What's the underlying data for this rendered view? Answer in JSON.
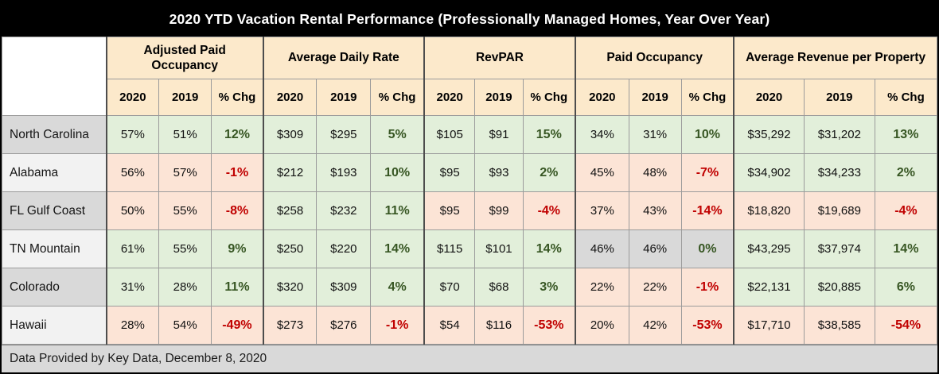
{
  "header": {
    "title": "2020 YTD Vacation Rental Performance (Professionally Managed Homes, Year Over Year)"
  },
  "footer": {
    "text": "Data Provided by Key Data, December 8, 2020"
  },
  "colors": {
    "title_bar_bg": "#000000",
    "title_bar_text": "#FFFFFF",
    "header_bg": "#FCE9CB",
    "positive_bg": "#E2EFDA",
    "negative_bg": "#FCE4D6",
    "neutral_bg": "#D9D9D9",
    "positive_text": "#375623",
    "negative_text": "#C00000",
    "row_label_bg_a": "#D9D9D9",
    "row_label_bg_b": "#F2F2F2",
    "footer_bg": "#D9D9D9"
  },
  "chart_data": {
    "type": "table",
    "title": "2020 YTD Vacation Rental Performance (Professionally Managed Homes, Year Over Year)",
    "column_groups": [
      "Adjusted Paid Occupancy",
      "Average Daily Rate",
      "RevPAR",
      "Paid Occupancy",
      "Average Revenue per Property"
    ],
    "sub_columns": [
      "2020",
      "2019",
      "% Chg"
    ],
    "rows": [
      {
        "label": "North Carolina",
        "metrics": [
          {
            "y2020": "57%",
            "y2019": "51%",
            "chg": "12%",
            "trend": "up"
          },
          {
            "y2020": "$309",
            "y2019": "$295",
            "chg": "5%",
            "trend": "up"
          },
          {
            "y2020": "$105",
            "y2019": "$91",
            "chg": "15%",
            "trend": "up"
          },
          {
            "y2020": "34%",
            "y2019": "31%",
            "chg": "10%",
            "trend": "up"
          },
          {
            "y2020": "$35,292",
            "y2019": "$31,202",
            "chg": "13%",
            "trend": "up"
          }
        ]
      },
      {
        "label": "Alabama",
        "metrics": [
          {
            "y2020": "56%",
            "y2019": "57%",
            "chg": "-1%",
            "trend": "down"
          },
          {
            "y2020": "$212",
            "y2019": "$193",
            "chg": "10%",
            "trend": "up"
          },
          {
            "y2020": "$95",
            "y2019": "$93",
            "chg": "2%",
            "trend": "up"
          },
          {
            "y2020": "45%",
            "y2019": "48%",
            "chg": "-7%",
            "trend": "down"
          },
          {
            "y2020": "$34,902",
            "y2019": "$34,233",
            "chg": "2%",
            "trend": "up"
          }
        ]
      },
      {
        "label": "FL Gulf Coast",
        "metrics": [
          {
            "y2020": "50%",
            "y2019": "55%",
            "chg": "-8%",
            "trend": "down"
          },
          {
            "y2020": "$258",
            "y2019": "$232",
            "chg": "11%",
            "trend": "up"
          },
          {
            "y2020": "$95",
            "y2019": "$99",
            "chg": "-4%",
            "trend": "down"
          },
          {
            "y2020": "37%",
            "y2019": "43%",
            "chg": "-14%",
            "trend": "down"
          },
          {
            "y2020": "$18,820",
            "y2019": "$19,689",
            "chg": "-4%",
            "trend": "down"
          }
        ]
      },
      {
        "label": "TN Mountain",
        "metrics": [
          {
            "y2020": "61%",
            "y2019": "55%",
            "chg": "9%",
            "trend": "up"
          },
          {
            "y2020": "$250",
            "y2019": "$220",
            "chg": "14%",
            "trend": "up"
          },
          {
            "y2020": "$115",
            "y2019": "$101",
            "chg": "14%",
            "trend": "up"
          },
          {
            "y2020": "46%",
            "y2019": "46%",
            "chg": "0%",
            "trend": "flat"
          },
          {
            "y2020": "$43,295",
            "y2019": "$37,974",
            "chg": "14%",
            "trend": "up"
          }
        ]
      },
      {
        "label": "Colorado",
        "metrics": [
          {
            "y2020": "31%",
            "y2019": "28%",
            "chg": "11%",
            "trend": "up"
          },
          {
            "y2020": "$320",
            "y2019": "$309",
            "chg": "4%",
            "trend": "up"
          },
          {
            "y2020": "$70",
            "y2019": "$68",
            "chg": "3%",
            "trend": "up"
          },
          {
            "y2020": "22%",
            "y2019": "22%",
            "chg": "-1%",
            "trend": "down"
          },
          {
            "y2020": "$22,131",
            "y2019": "$20,885",
            "chg": "6%",
            "trend": "up"
          }
        ]
      },
      {
        "label": "Hawaii",
        "metrics": [
          {
            "y2020": "28%",
            "y2019": "54%",
            "chg": "-49%",
            "trend": "down"
          },
          {
            "y2020": "$273",
            "y2019": "$276",
            "chg": "-1%",
            "trend": "down"
          },
          {
            "y2020": "$54",
            "y2019": "$116",
            "chg": "-53%",
            "trend": "down"
          },
          {
            "y2020": "20%",
            "y2019": "42%",
            "chg": "-53%",
            "trend": "down"
          },
          {
            "y2020": "$17,710",
            "y2019": "$38,585",
            "chg": "-54%",
            "trend": "down"
          }
        ]
      }
    ]
  }
}
